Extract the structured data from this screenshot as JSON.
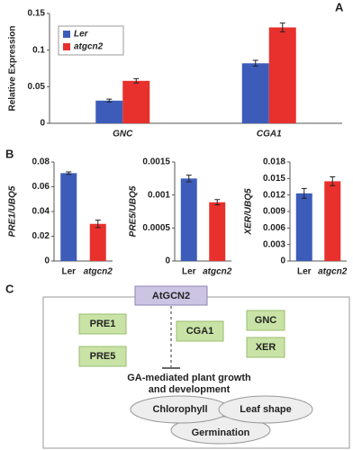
{
  "panel_labels": [
    "A",
    "B",
    "C"
  ],
  "chart_data": [
    {
      "type": "bar",
      "ylabel": "Relative Expression",
      "categories": [
        "GNC",
        "CGA1"
      ],
      "series": [
        {
          "name": "Ler",
          "color": "#3d5cba",
          "values": [
            0.031,
            0.082
          ],
          "errors": [
            0.002,
            0.004
          ]
        },
        {
          "name": "atgcn2",
          "color": "#e8302c",
          "values": [
            0.058,
            0.131
          ],
          "errors": [
            0.003,
            0.006
          ]
        }
      ],
      "ylim": [
        0,
        0.15
      ],
      "yticks": [
        0,
        0.05,
        0.1,
        0.15
      ],
      "legend": "upper left"
    },
    {
      "type": "bar",
      "ylabel": "PRE1/UBQ5",
      "categories": [
        "Ler",
        "atgcn2"
      ],
      "series": [
        {
          "colors": [
            "#3d5cba",
            "#e8302c"
          ],
          "values": [
            0.071,
            0.03
          ],
          "errors": [
            0.001,
            0.003
          ]
        }
      ],
      "ylim": [
        0,
        0.08
      ],
      "yticks": [
        0,
        0.02,
        0.04,
        0.06,
        0.08
      ]
    },
    {
      "type": "bar",
      "ylabel": "PRE5/UBQ5",
      "categories": [
        "Ler",
        "atgcn2"
      ],
      "series": [
        {
          "colors": [
            "#3d5cba",
            "#e8302c"
          ],
          "values": [
            0.00125,
            0.00089
          ],
          "errors": [
            5e-05,
            4e-05
          ]
        }
      ],
      "ylim": [
        0,
        0.0015
      ],
      "yticks": [
        0,
        0.0005,
        0.001,
        0.0015
      ]
    },
    {
      "type": "bar",
      "ylabel": "XER/UBQ5",
      "categories": [
        "Ler",
        "atgcn2"
      ],
      "series": [
        {
          "colors": [
            "#3d5cba",
            "#e8302c"
          ],
          "values": [
            0.0123,
            0.0145
          ],
          "errors": [
            0.0009,
            0.0008
          ]
        }
      ],
      "ylim": [
        0,
        0.018
      ],
      "yticks": [
        0,
        0.003,
        0.006,
        0.009,
        0.012,
        0.015,
        0.018
      ]
    }
  ],
  "diagram": {
    "regulator": "AtGCN2",
    "targets": [
      "PRE1",
      "CGA1",
      "GNC",
      "PRE5",
      "XER"
    ],
    "outcome": [
      "GA-mediated plant growth",
      "and development"
    ],
    "traits": [
      "Chlorophyll",
      "Leaf shape",
      "Germination"
    ]
  }
}
